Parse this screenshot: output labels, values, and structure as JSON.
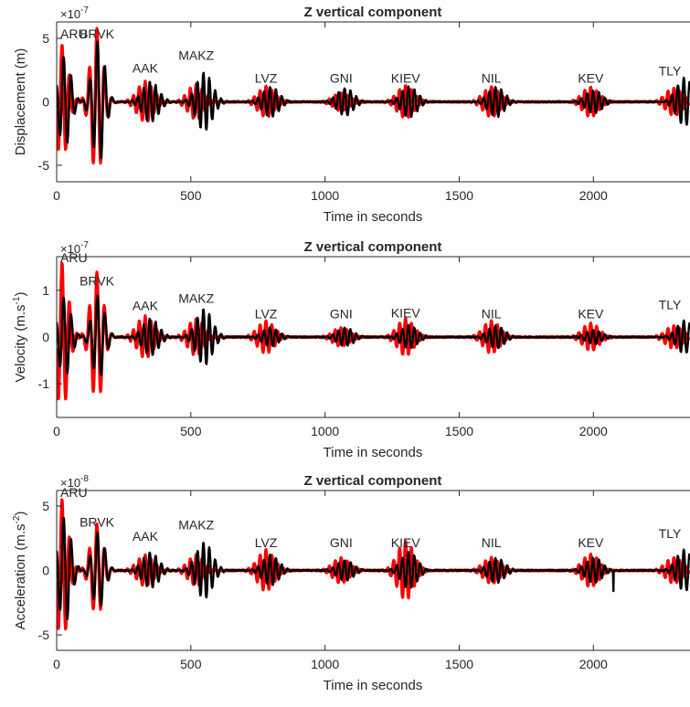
{
  "chart_data": [
    {
      "type": "line",
      "title": "Z vertical component",
      "xlabel": "Time in seconds",
      "ylabel": "Displacement (m)",
      "ylabel_sup": "",
      "ylabel_end": "",
      "exponent": "×10",
      "exponent_power": "-7",
      "xlim": [
        0,
        2360
      ],
      "ylim": [
        -6.3,
        6.3
      ],
      "xticks": [
        0,
        500,
        1000,
        1500,
        2000
      ],
      "yticks": [
        -5,
        0,
        5
      ],
      "grid": false,
      "stations": [
        {
          "name": "ARU",
          "t": 20,
          "label_y": 5.0
        },
        {
          "name": "BRVK",
          "t": 150,
          "label_y": 5.0
        },
        {
          "name": "AAK",
          "t": 330,
          "label_y": 2.3
        },
        {
          "name": "MAKZ",
          "t": 520,
          "label_y": 3.3
        },
        {
          "name": "LVZ",
          "t": 780,
          "label_y": 1.5
        },
        {
          "name": "GNI",
          "t": 1060,
          "label_y": 1.5
        },
        {
          "name": "KIEV",
          "t": 1300,
          "label_y": 1.5
        },
        {
          "name": "NIL",
          "t": 1620,
          "label_y": 1.5
        },
        {
          "name": "KEV",
          "t": 1990,
          "label_y": 1.5
        },
        {
          "name": "TLY",
          "t": 2300,
          "label_y": 2.1
        }
      ],
      "series": [
        {
          "color": "#ff0000",
          "amps": [
            4.5,
            5.8,
            1.6,
            1.4,
            1.2,
            0.7,
            1.3,
            1.2,
            1.2,
            1.1
          ],
          "lags": [
            0,
            0,
            0,
            0,
            0,
            0,
            0,
            0,
            0,
            0
          ]
        },
        {
          "color": "#000000",
          "amps": [
            3.6,
            4.9,
            1.6,
            2.3,
            1.2,
            1.1,
            1.2,
            1.2,
            0.9,
            1.9
          ],
          "lags": [
            10,
            6,
            20,
            30,
            18,
            16,
            14,
            18,
            12,
            40
          ]
        }
      ]
    },
    {
      "type": "line",
      "title": "Z vertical component",
      "xlabel": "Time in seconds",
      "ylabel": "Velocity (m.s",
      "ylabel_sup": "-1",
      "ylabel_end": ")",
      "exponent": "×10",
      "exponent_power": "-7",
      "xlim": [
        0,
        2360
      ],
      "ylim": [
        -1.72,
        1.72
      ],
      "xticks": [
        0,
        500,
        1000,
        1500,
        2000
      ],
      "yticks": [
        -1,
        0,
        1
      ],
      "grid": false,
      "stations": [
        {
          "name": "ARU",
          "t": 20,
          "label_y": 1.6
        },
        {
          "name": "BRVK",
          "t": 150,
          "label_y": 1.1
        },
        {
          "name": "AAK",
          "t": 330,
          "label_y": 0.58
        },
        {
          "name": "MAKZ",
          "t": 520,
          "label_y": 0.73
        },
        {
          "name": "LVZ",
          "t": 780,
          "label_y": 0.4
        },
        {
          "name": "GNI",
          "t": 1060,
          "label_y": 0.4
        },
        {
          "name": "KIEV",
          "t": 1300,
          "label_y": 0.42
        },
        {
          "name": "NIL",
          "t": 1620,
          "label_y": 0.4
        },
        {
          "name": "KEV",
          "t": 1990,
          "label_y": 0.4
        },
        {
          "name": "TLY",
          "t": 2300,
          "label_y": 0.6
        }
      ],
      "series": [
        {
          "color": "#ff0000",
          "amps": [
            1.6,
            1.4,
            0.45,
            0.4,
            0.35,
            0.2,
            0.4,
            0.35,
            0.3,
            0.25
          ],
          "lags": [
            0,
            0,
            0,
            0,
            0,
            0,
            0,
            0,
            0,
            0
          ]
        },
        {
          "color": "#000000",
          "amps": [
            0.85,
            0.9,
            0.4,
            0.6,
            0.2,
            0.2,
            0.25,
            0.25,
            0.15,
            0.35
          ],
          "lags": [
            10,
            6,
            20,
            30,
            18,
            16,
            14,
            18,
            12,
            40
          ]
        }
      ]
    },
    {
      "type": "line",
      "title": "Z vertical component",
      "xlabel": "Time in seconds",
      "ylabel": "Acceleration (m.s",
      "ylabel_sup": "-2",
      "ylabel_end": ")",
      "exponent": "×10",
      "exponent_power": "-8",
      "xlim": [
        0,
        2360
      ],
      "ylim": [
        -6.2,
        6.2
      ],
      "xticks": [
        0,
        500,
        1000,
        1500,
        2000
      ],
      "yticks": [
        -5,
        0,
        5
      ],
      "grid": false,
      "stations": [
        {
          "name": "ARU",
          "t": 20,
          "label_y": 5.7
        },
        {
          "name": "BRVK",
          "t": 150,
          "label_y": 3.4
        },
        {
          "name": "AAK",
          "t": 330,
          "label_y": 2.3
        },
        {
          "name": "MAKZ",
          "t": 520,
          "label_y": 3.2
        },
        {
          "name": "LVZ",
          "t": 780,
          "label_y": 1.8
        },
        {
          "name": "GNI",
          "t": 1060,
          "label_y": 1.8
        },
        {
          "name": "KIEV",
          "t": 1300,
          "label_y": 1.8
        },
        {
          "name": "NIL",
          "t": 1620,
          "label_y": 1.8
        },
        {
          "name": "KEV",
          "t": 1990,
          "label_y": 1.8
        },
        {
          "name": "TLY",
          "t": 2300,
          "label_y": 2.5
        }
      ],
      "series": [
        {
          "color": "#ff0000",
          "amps": [
            5.5,
            3.6,
            1.2,
            1.2,
            1.6,
            1.0,
            2.3,
            1.0,
            1.3,
            1.0
          ],
          "lags": [
            0,
            0,
            0,
            0,
            0,
            0,
            0,
            0,
            0,
            0
          ]
        },
        {
          "color": "#000000",
          "amps": [
            4.2,
            3.0,
            1.4,
            2.2,
            1.2,
            0.8,
            1.4,
            1.0,
            1.0,
            1.6
          ],
          "lags": [
            10,
            6,
            20,
            30,
            18,
            16,
            14,
            18,
            12,
            40
          ]
        }
      ],
      "spike": {
        "t": 2075,
        "value": -1.6
      }
    }
  ]
}
